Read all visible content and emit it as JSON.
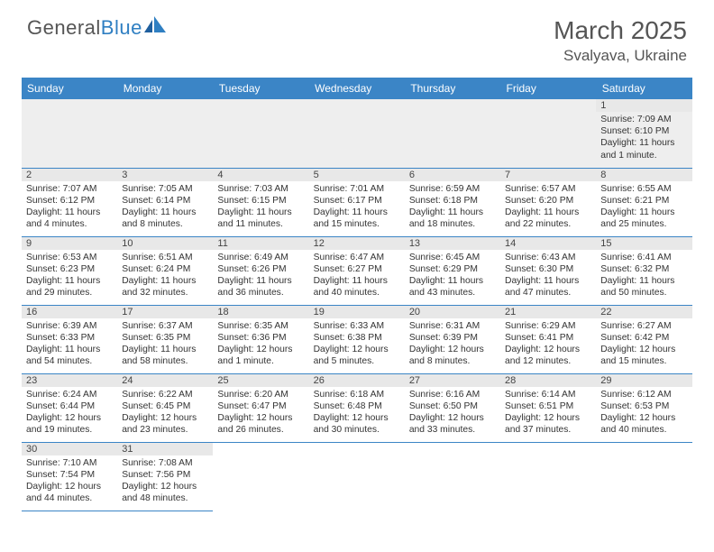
{
  "logo": {
    "text_a": "General",
    "text_b": "Blue"
  },
  "title": "March 2025",
  "location": "Svalyava, Ukraine",
  "colors": {
    "header_bg": "#3b85c6",
    "header_text": "#ffffff",
    "daynum_bg": "#e8e8e8",
    "border": "#3b85c6",
    "body_text": "#333333",
    "logo_gray": "#555555",
    "logo_blue": "#2f7fc2"
  },
  "day_headers": [
    "Sunday",
    "Monday",
    "Tuesday",
    "Wednesday",
    "Thursday",
    "Friday",
    "Saturday"
  ],
  "weeks": [
    [
      null,
      null,
      null,
      null,
      null,
      null,
      {
        "n": "1",
        "sr": "Sunrise: 7:09 AM",
        "ss": "Sunset: 6:10 PM",
        "dl": "Daylight: 11 hours and 1 minute."
      }
    ],
    [
      {
        "n": "2",
        "sr": "Sunrise: 7:07 AM",
        "ss": "Sunset: 6:12 PM",
        "dl": "Daylight: 11 hours and 4 minutes."
      },
      {
        "n": "3",
        "sr": "Sunrise: 7:05 AM",
        "ss": "Sunset: 6:14 PM",
        "dl": "Daylight: 11 hours and 8 minutes."
      },
      {
        "n": "4",
        "sr": "Sunrise: 7:03 AM",
        "ss": "Sunset: 6:15 PM",
        "dl": "Daylight: 11 hours and 11 minutes."
      },
      {
        "n": "5",
        "sr": "Sunrise: 7:01 AM",
        "ss": "Sunset: 6:17 PM",
        "dl": "Daylight: 11 hours and 15 minutes."
      },
      {
        "n": "6",
        "sr": "Sunrise: 6:59 AM",
        "ss": "Sunset: 6:18 PM",
        "dl": "Daylight: 11 hours and 18 minutes."
      },
      {
        "n": "7",
        "sr": "Sunrise: 6:57 AM",
        "ss": "Sunset: 6:20 PM",
        "dl": "Daylight: 11 hours and 22 minutes."
      },
      {
        "n": "8",
        "sr": "Sunrise: 6:55 AM",
        "ss": "Sunset: 6:21 PM",
        "dl": "Daylight: 11 hours and 25 minutes."
      }
    ],
    [
      {
        "n": "9",
        "sr": "Sunrise: 6:53 AM",
        "ss": "Sunset: 6:23 PM",
        "dl": "Daylight: 11 hours and 29 minutes."
      },
      {
        "n": "10",
        "sr": "Sunrise: 6:51 AM",
        "ss": "Sunset: 6:24 PM",
        "dl": "Daylight: 11 hours and 32 minutes."
      },
      {
        "n": "11",
        "sr": "Sunrise: 6:49 AM",
        "ss": "Sunset: 6:26 PM",
        "dl": "Daylight: 11 hours and 36 minutes."
      },
      {
        "n": "12",
        "sr": "Sunrise: 6:47 AM",
        "ss": "Sunset: 6:27 PM",
        "dl": "Daylight: 11 hours and 40 minutes."
      },
      {
        "n": "13",
        "sr": "Sunrise: 6:45 AM",
        "ss": "Sunset: 6:29 PM",
        "dl": "Daylight: 11 hours and 43 minutes."
      },
      {
        "n": "14",
        "sr": "Sunrise: 6:43 AM",
        "ss": "Sunset: 6:30 PM",
        "dl": "Daylight: 11 hours and 47 minutes."
      },
      {
        "n": "15",
        "sr": "Sunrise: 6:41 AM",
        "ss": "Sunset: 6:32 PM",
        "dl": "Daylight: 11 hours and 50 minutes."
      }
    ],
    [
      {
        "n": "16",
        "sr": "Sunrise: 6:39 AM",
        "ss": "Sunset: 6:33 PM",
        "dl": "Daylight: 11 hours and 54 minutes."
      },
      {
        "n": "17",
        "sr": "Sunrise: 6:37 AM",
        "ss": "Sunset: 6:35 PM",
        "dl": "Daylight: 11 hours and 58 minutes."
      },
      {
        "n": "18",
        "sr": "Sunrise: 6:35 AM",
        "ss": "Sunset: 6:36 PM",
        "dl": "Daylight: 12 hours and 1 minute."
      },
      {
        "n": "19",
        "sr": "Sunrise: 6:33 AM",
        "ss": "Sunset: 6:38 PM",
        "dl": "Daylight: 12 hours and 5 minutes."
      },
      {
        "n": "20",
        "sr": "Sunrise: 6:31 AM",
        "ss": "Sunset: 6:39 PM",
        "dl": "Daylight: 12 hours and 8 minutes."
      },
      {
        "n": "21",
        "sr": "Sunrise: 6:29 AM",
        "ss": "Sunset: 6:41 PM",
        "dl": "Daylight: 12 hours and 12 minutes."
      },
      {
        "n": "22",
        "sr": "Sunrise: 6:27 AM",
        "ss": "Sunset: 6:42 PM",
        "dl": "Daylight: 12 hours and 15 minutes."
      }
    ],
    [
      {
        "n": "23",
        "sr": "Sunrise: 6:24 AM",
        "ss": "Sunset: 6:44 PM",
        "dl": "Daylight: 12 hours and 19 minutes."
      },
      {
        "n": "24",
        "sr": "Sunrise: 6:22 AM",
        "ss": "Sunset: 6:45 PM",
        "dl": "Daylight: 12 hours and 23 minutes."
      },
      {
        "n": "25",
        "sr": "Sunrise: 6:20 AM",
        "ss": "Sunset: 6:47 PM",
        "dl": "Daylight: 12 hours and 26 minutes."
      },
      {
        "n": "26",
        "sr": "Sunrise: 6:18 AM",
        "ss": "Sunset: 6:48 PM",
        "dl": "Daylight: 12 hours and 30 minutes."
      },
      {
        "n": "27",
        "sr": "Sunrise: 6:16 AM",
        "ss": "Sunset: 6:50 PM",
        "dl": "Daylight: 12 hours and 33 minutes."
      },
      {
        "n": "28",
        "sr": "Sunrise: 6:14 AM",
        "ss": "Sunset: 6:51 PM",
        "dl": "Daylight: 12 hours and 37 minutes."
      },
      {
        "n": "29",
        "sr": "Sunrise: 6:12 AM",
        "ss": "Sunset: 6:53 PM",
        "dl": "Daylight: 12 hours and 40 minutes."
      }
    ],
    [
      {
        "n": "30",
        "sr": "Sunrise: 7:10 AM",
        "ss": "Sunset: 7:54 PM",
        "dl": "Daylight: 12 hours and 44 minutes."
      },
      {
        "n": "31",
        "sr": "Sunrise: 7:08 AM",
        "ss": "Sunset: 7:56 PM",
        "dl": "Daylight: 12 hours and 48 minutes."
      },
      null,
      null,
      null,
      null,
      null
    ]
  ]
}
